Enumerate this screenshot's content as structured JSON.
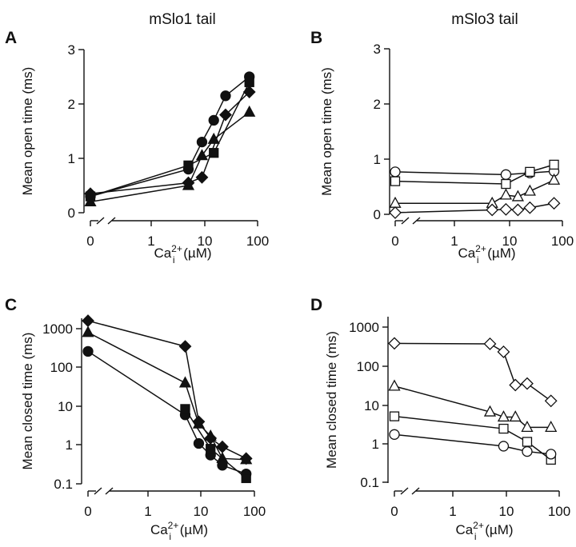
{
  "figure": {
    "columns": [
      {
        "title": "mSlo1 tail"
      },
      {
        "title": "mSlo3 tail"
      }
    ]
  },
  "chart_data": [
    {
      "id": "A",
      "panel_label": "A",
      "type": "line",
      "title": "mSlo1 tail",
      "xlabel": "Ca2+i (µM)",
      "xlabel_parts": {
        "base": "Ca",
        "sup": "2+",
        "sub": "i",
        "unit": " (µM)"
      },
      "ylabel": "Mean open time (ms)",
      "xscale": "log-with-zero-break",
      "yscale": "linear",
      "xticks": [
        0,
        1,
        10,
        100
      ],
      "xtick_labels": [
        "0",
        "1",
        "10",
        "100"
      ],
      "yticks": [
        0,
        1,
        2,
        3
      ],
      "ytick_labels": [
        "0",
        "1",
        "2",
        "3"
      ],
      "ylim": [
        0,
        3
      ],
      "marker_fill": "filled",
      "series": [
        {
          "name": "circle",
          "marker": "circle",
          "x": [
            0,
            5,
            9,
            15,
            25,
            70
          ],
          "y": [
            0.3,
            0.8,
            1.3,
            1.7,
            2.15,
            2.5
          ]
        },
        {
          "name": "square",
          "marker": "square",
          "x": [
            0,
            5,
            15,
            70
          ],
          "y": [
            0.3,
            0.87,
            1.1,
            2.4
          ]
        },
        {
          "name": "diamond",
          "marker": "diamond",
          "x": [
            0,
            5,
            9,
            25,
            70
          ],
          "y": [
            0.35,
            0.55,
            0.65,
            1.8,
            2.22
          ]
        },
        {
          "name": "triangle",
          "marker": "triangle",
          "x": [
            0,
            5,
            9,
            15,
            70
          ],
          "y": [
            0.2,
            0.5,
            1.05,
            1.35,
            1.85
          ]
        }
      ]
    },
    {
      "id": "B",
      "panel_label": "B",
      "type": "line",
      "title": "mSlo3 tail",
      "xlabel": "Ca2+i (µM)",
      "xlabel_parts": {
        "base": "Ca",
        "sup": "2+",
        "sub": "i",
        "unit": " (µM)"
      },
      "ylabel": "Mean open time (ms)",
      "xscale": "log-with-zero-break",
      "yscale": "linear",
      "xticks": [
        0,
        1,
        10,
        100
      ],
      "xtick_labels": [
        "0",
        "1",
        "10",
        "100"
      ],
      "yticks": [
        0,
        1,
        2,
        3
      ],
      "ytick_labels": [
        "0",
        "1",
        "2",
        "3"
      ],
      "ylim": [
        0,
        3
      ],
      "marker_fill": "open",
      "series": [
        {
          "name": "circle",
          "marker": "circle",
          "x": [
            0,
            9,
            25,
            70
          ],
          "y": [
            0.77,
            0.72,
            0.75,
            0.78
          ]
        },
        {
          "name": "square",
          "marker": "square",
          "x": [
            0,
            9,
            25,
            70
          ],
          "y": [
            0.6,
            0.55,
            0.77,
            0.9
          ]
        },
        {
          "name": "triangle",
          "marker": "triangle",
          "x": [
            0,
            5,
            9,
            15,
            25,
            70
          ],
          "y": [
            0.2,
            0.2,
            0.35,
            0.32,
            0.42,
            0.62
          ]
        },
        {
          "name": "diamond",
          "marker": "diamond",
          "x": [
            0,
            5,
            9,
            15,
            25,
            70
          ],
          "y": [
            0.03,
            0.08,
            0.09,
            0.08,
            0.12,
            0.2
          ]
        }
      ]
    },
    {
      "id": "C",
      "panel_label": "C",
      "type": "line",
      "title": "",
      "xlabel": "Ca2+i (µM)",
      "xlabel_parts": {
        "base": "Ca",
        "sup": "2+",
        "sub": "i",
        "unit": " (µM)"
      },
      "ylabel": "Mean closed time (ms)",
      "xscale": "log-with-zero-break",
      "yscale": "log",
      "xticks": [
        0,
        1,
        10,
        100
      ],
      "xtick_labels": [
        "0",
        "1",
        "10",
        "100"
      ],
      "yticks": [
        0.1,
        1,
        10,
        100,
        1000
      ],
      "ytick_labels": [
        "0.1",
        "1",
        "10",
        "100",
        "1000"
      ],
      "ylim": [
        0.1,
        2000
      ],
      "marker_fill": "filled",
      "series": [
        {
          "name": "diamond",
          "marker": "diamond",
          "x": [
            0,
            5,
            9,
            15,
            25,
            70
          ],
          "y": [
            1600,
            350,
            4,
            1.5,
            0.9,
            0.45
          ]
        },
        {
          "name": "triangle",
          "marker": "triangle",
          "x": [
            0,
            5,
            9,
            15,
            25,
            70
          ],
          "y": [
            800,
            40,
            3.5,
            1.7,
            0.45,
            0.42
          ]
        },
        {
          "name": "circle",
          "marker": "circle",
          "x": [
            0,
            5,
            9,
            15,
            25,
            70
          ],
          "y": [
            260,
            6,
            1.1,
            0.55,
            0.3,
            0.18
          ]
        },
        {
          "name": "square",
          "marker": "square",
          "x": [
            5,
            15,
            70
          ],
          "y": [
            8.5,
            0.8,
            0.14
          ]
        }
      ]
    },
    {
      "id": "D",
      "panel_label": "D",
      "type": "line",
      "title": "",
      "xlabel": "Ca2+i (µM)",
      "xlabel_parts": {
        "base": "Ca",
        "sup": "2+",
        "sub": "i",
        "unit": " (µM)"
      },
      "ylabel": "Mean closed time (ms)",
      "xscale": "log-with-zero-break",
      "yscale": "log",
      "xticks": [
        0,
        1,
        10,
        100
      ],
      "xtick_labels": [
        "0",
        "1",
        "10",
        "100"
      ],
      "yticks": [
        0.1,
        1,
        10,
        100,
        1000
      ],
      "ytick_labels": [
        "0.1",
        "1",
        "10",
        "100",
        "1000"
      ],
      "ylim": [
        0.1,
        2000
      ],
      "marker_fill": "open",
      "series": [
        {
          "name": "diamond",
          "marker": "diamond",
          "x": [
            0,
            5,
            9,
            15,
            25,
            70
          ],
          "y": [
            380,
            370,
            230,
            32,
            35,
            12.5
          ]
        },
        {
          "name": "triangle",
          "marker": "triangle",
          "x": [
            0,
            5,
            9,
            15,
            25,
            70
          ],
          "y": [
            30,
            6.5,
            4.8,
            4.8,
            2.6,
            2.6
          ]
        },
        {
          "name": "square",
          "marker": "square",
          "x": [
            0,
            9,
            25,
            70
          ],
          "y": [
            5,
            2.4,
            1.1,
            0.38
          ]
        },
        {
          "name": "circle",
          "marker": "circle",
          "x": [
            0,
            9,
            25,
            70
          ],
          "y": [
            1.7,
            0.85,
            0.62,
            0.53
          ]
        }
      ]
    }
  ]
}
